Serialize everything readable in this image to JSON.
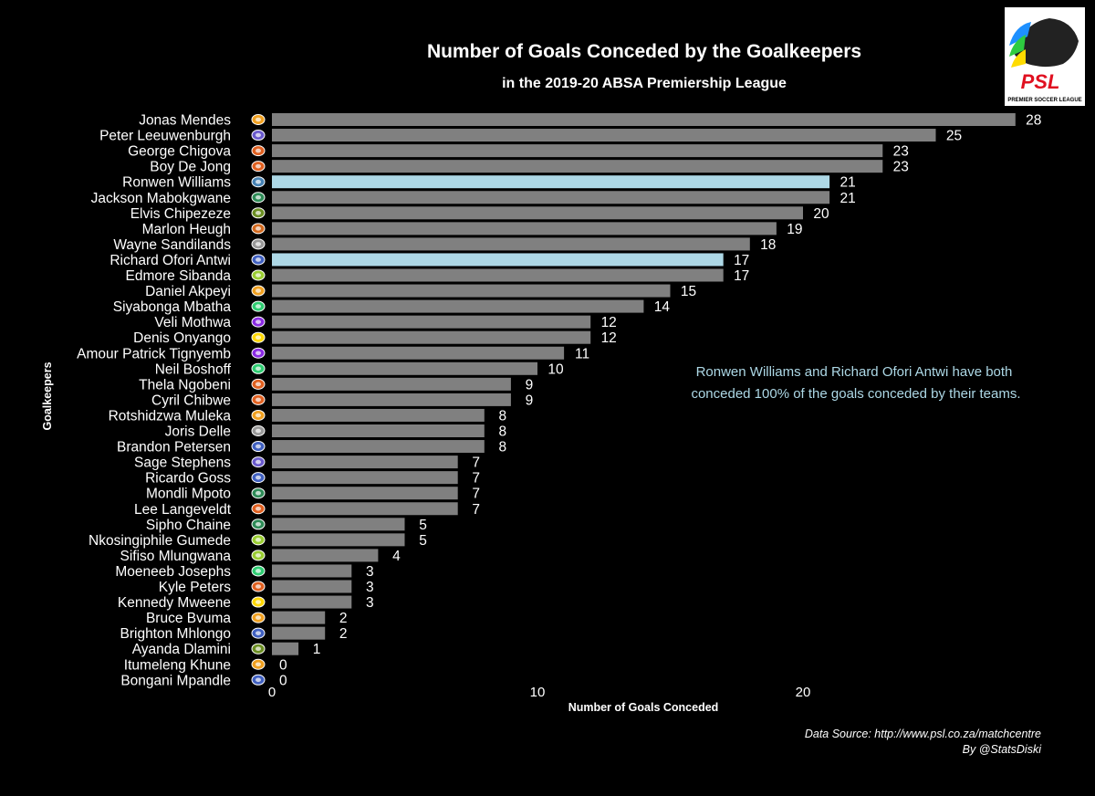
{
  "colors": {
    "background": "#000000",
    "bar_default": "#808080",
    "bar_highlight": "#ADD8E6",
    "annotation": "#ADD8E6",
    "text": "#ffffff"
  },
  "logo": {
    "icon": "psl-lion-logo",
    "text": "PSL",
    "tagline": "PREMIER SOCCER LEAGUE"
  },
  "chart_data": {
    "type": "bar",
    "orientation": "horizontal",
    "title": "Number of Goals Conceded by the Goalkeepers",
    "subtitle": "in the 2019-20 ABSA Premiership League",
    "xlabel": "Number of Goals Conceded",
    "ylabel": "Goalkeepers",
    "xlim": [
      0,
      28
    ],
    "xticks": [
      0,
      10,
      20
    ],
    "grid": false,
    "categories": [
      "Jonas Mendes",
      "Peter Leeuwenburgh",
      "George Chigova",
      "Boy De Jong",
      "Ronwen Williams",
      "Jackson Mabokgwane",
      "Elvis Chipezeze",
      "Marlon Heugh",
      "Wayne Sandilands",
      "Richard Ofori Antwi",
      "Edmore Sibanda",
      "Daniel Akpeyi",
      "Siyabonga Mbatha",
      "Veli Mothwa",
      "Denis Onyango",
      "Amour Patrick Tignyemb",
      "Neil Boshoff",
      "Thela Ngobeni",
      "Cyril Chibwe",
      "Rotshidzwa Muleka",
      "Joris Delle",
      "Brandon Petersen",
      "Sage Stephens",
      "Ricardo Goss",
      "Mondli Mpoto",
      "Lee Langeveldt",
      "Sipho Chaine",
      "Nkosingiphile Gumede",
      "Sifiso Mlungwana",
      "Moeneeb Josephs",
      "Kyle Peters",
      "Kennedy Mweene",
      "Bruce Bvuma",
      "Brighton Mhlongo",
      "Ayanda Dlamini",
      "Itumeleng Khune",
      "Bongani Mpandle"
    ],
    "values": [
      28,
      25,
      23,
      23,
      21,
      21,
      20,
      19,
      18,
      17,
      17,
      15,
      14,
      12,
      12,
      11,
      10,
      9,
      9,
      8,
      8,
      8,
      7,
      7,
      7,
      7,
      5,
      5,
      4,
      3,
      3,
      3,
      2,
      2,
      1,
      0,
      0
    ],
    "highlighted": [
      "Ronwen Williams",
      "Richard Ofori Antwi"
    ],
    "badge_colors": [
      "#f0a020",
      "#6a5acd",
      "#e06020",
      "#e06020",
      "#4682b4",
      "#2e8b57",
      "#6b8e23",
      "#d2691e",
      "#999999",
      "#4060c0",
      "#9acd32",
      "#f0a020",
      "#2ecc71",
      "#8a2be2",
      "#ffd700",
      "#8a2be2",
      "#2ecc71",
      "#e06020",
      "#e06020",
      "#f0a020",
      "#999999",
      "#4060c0",
      "#6a5acd",
      "#4060c0",
      "#2e8b57",
      "#e06020",
      "#2e8b57",
      "#9acd32",
      "#9acd32",
      "#2ecc71",
      "#e06020",
      "#ffd700",
      "#f0a020",
      "#4060c0",
      "#6b8e23",
      "#f0a020",
      "#4060c0"
    ],
    "annotation": [
      "Ronwen Williams and Richard Ofori Antwi have both",
      "conceded 100% of the goals conceded by their teams."
    ],
    "source": "Data Source: http://www.psl.co.za/matchcentre",
    "credit": "By @StatsDiski"
  }
}
